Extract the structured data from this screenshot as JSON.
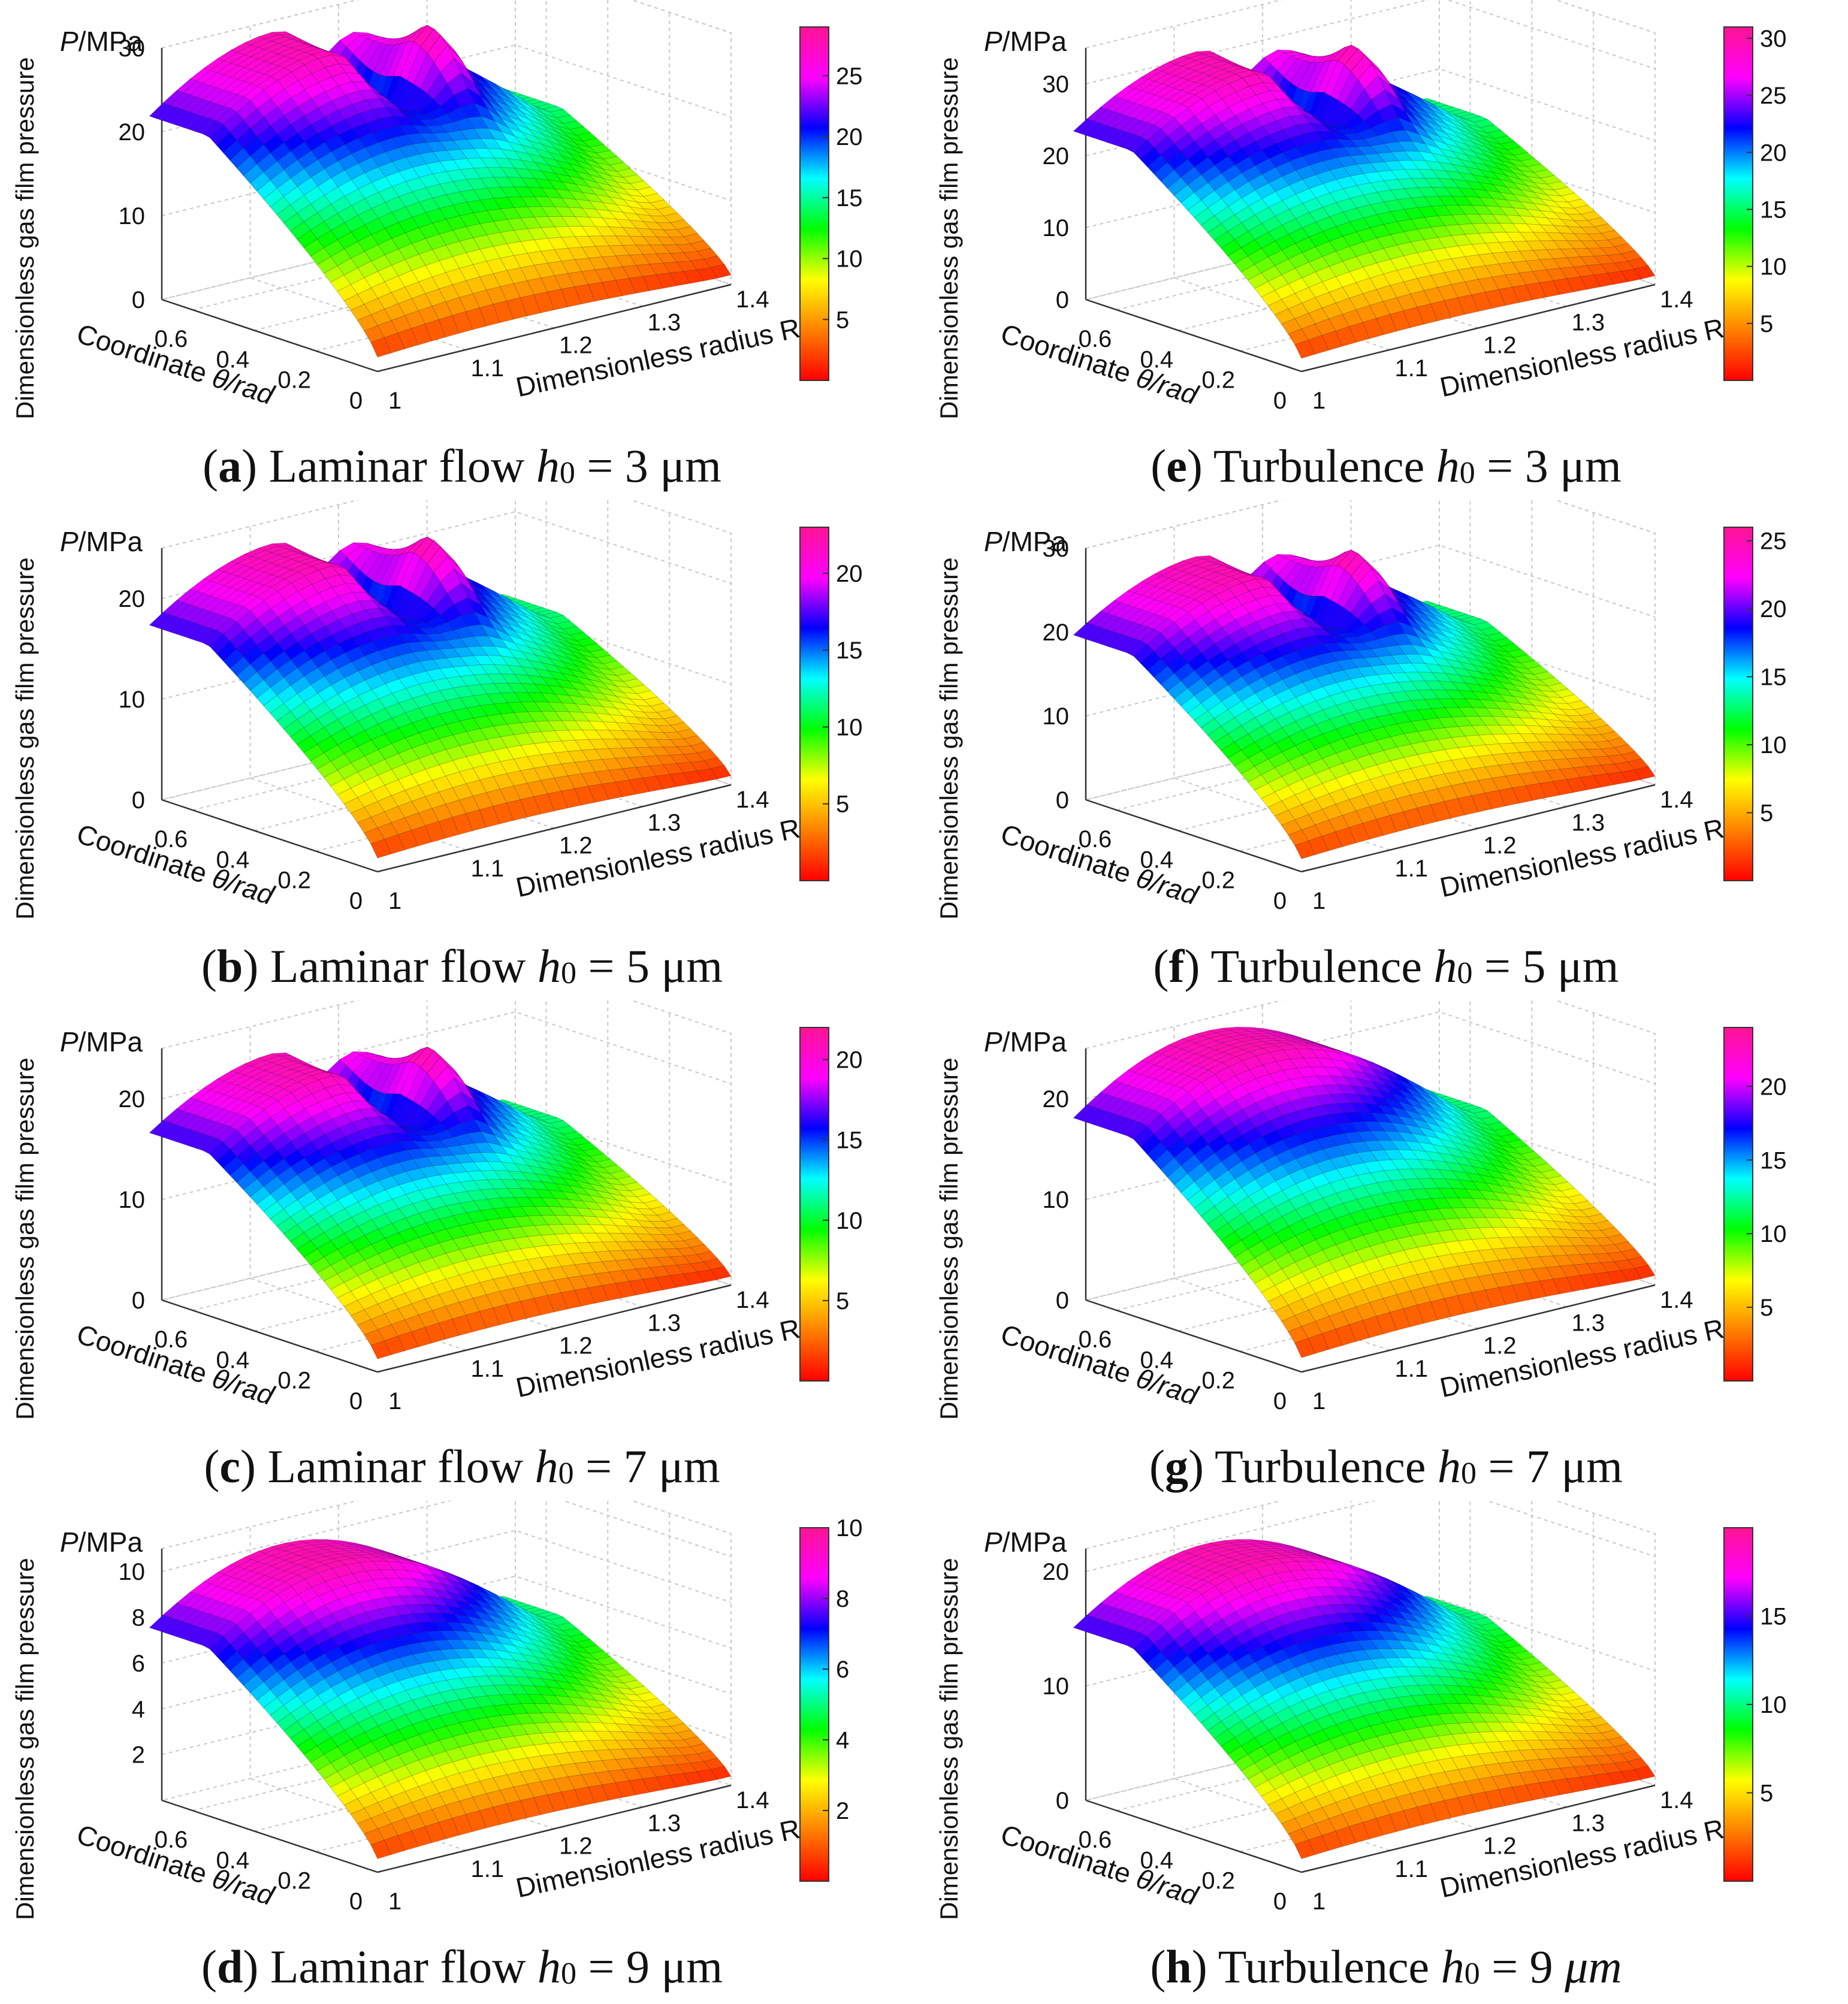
{
  "palette": [
    "#ff0000",
    "#ff8000",
    "#ffff00",
    "#00ff00",
    "#00ffff",
    "#0000ff",
    "#ff00ff",
    "#ff1493"
  ],
  "chart_data": [
    {
      "id": "a",
      "type": "surface",
      "regime": "Laminar flow",
      "h0": "3",
      "unit": "μm",
      "letter": "a",
      "zlabel": "P/MPa",
      "ylabel": "Dimensionless gas film pressure",
      "xlabel": "Dimensionless radius R",
      "thetalabel": "Coordinate θ/rad",
      "zticks": [
        "0",
        "10",
        "20",
        "30"
      ],
      "zmax": 30,
      "peak": 29,
      "rticks": [
        "1",
        "1.1",
        "1.2",
        "1.3",
        "1.4"
      ],
      "thticks": [
        "0",
        "0.2",
        "0.4",
        "0.6"
      ],
      "cbticks": [
        "5",
        "10",
        "15",
        "20",
        "25"
      ],
      "cbmax": 29,
      "groove": true
    },
    {
      "id": "e",
      "type": "surface",
      "regime": "Turbulence",
      "h0": "3",
      "unit": "μm",
      "letter": "e",
      "zlabel": "P/MPa",
      "ylabel": "Dimensionless gas film pressure",
      "xlabel": "Dimensionless radius R",
      "thetalabel": "Coordinate θ/rad",
      "zticks": [
        "0",
        "10",
        "20",
        "30"
      ],
      "zmax": 35,
      "peak": 31,
      "rticks": [
        "1",
        "1.1",
        "1.2",
        "1.3",
        "1.4"
      ],
      "thticks": [
        "0",
        "0.2",
        "0.4",
        "0.6"
      ],
      "cbticks": [
        "5",
        "10",
        "15",
        "20",
        "25",
        "30"
      ],
      "cbmax": 31,
      "groove": true
    },
    {
      "id": "b",
      "type": "surface",
      "regime": "Laminar flow",
      "h0": "5",
      "unit": "μm",
      "letter": "b",
      "zlabel": "P/MPa",
      "ylabel": "Dimensionless gas film pressure",
      "xlabel": "Dimensionless radius R",
      "thetalabel": "Coordinate θ/rad",
      "zticks": [
        "0",
        "10",
        "20"
      ],
      "zmax": 25,
      "peak": 23,
      "rticks": [
        "1",
        "1.1",
        "1.2",
        "1.3",
        "1.4"
      ],
      "thticks": [
        "0",
        "0.2",
        "0.4",
        "0.6"
      ],
      "cbticks": [
        "5",
        "10",
        "15",
        "20"
      ],
      "cbmax": 23,
      "groove": true
    },
    {
      "id": "f",
      "type": "surface",
      "regime": "Turbulence",
      "h0": "5",
      "unit": "μm",
      "letter": "f",
      "zlabel": "P/MPa",
      "ylabel": "Dimensionless gas film pressure",
      "xlabel": "Dimensionless radius R",
      "thetalabel": "Coordinate θ/rad",
      "zticks": [
        "0",
        "10",
        "20",
        "30"
      ],
      "zmax": 30,
      "peak": 26,
      "rticks": [
        "1",
        "1.1",
        "1.2",
        "1.3",
        "1.4"
      ],
      "thticks": [
        "0",
        "0.2",
        "0.4",
        "0.6"
      ],
      "cbticks": [
        "5",
        "10",
        "15",
        "20",
        "25"
      ],
      "cbmax": 26,
      "groove": true
    },
    {
      "id": "c",
      "type": "surface",
      "regime": "Laminar flow",
      "h0": "7",
      "unit": "μm",
      "letter": "c",
      "zlabel": "P/MPa",
      "ylabel": "Dimensionless gas film pressure",
      "xlabel": "Dimensionless radius R",
      "thetalabel": "Coordinate θ/rad",
      "zticks": [
        "0",
        "10",
        "20"
      ],
      "zmax": 25,
      "peak": 22,
      "rticks": [
        "1",
        "1.1",
        "1.2",
        "1.3",
        "1.4"
      ],
      "thticks": [
        "0",
        "0.2",
        "0.4",
        "0.6"
      ],
      "cbticks": [
        "5",
        "10",
        "15",
        "20"
      ],
      "cbmax": 22,
      "groove": true
    },
    {
      "id": "g",
      "type": "surface",
      "regime": "Turbulence",
      "h0": "7",
      "unit": "μm",
      "letter": "g",
      "zlabel": "P/MPa",
      "ylabel": "Dimensionless gas film pressure",
      "xlabel": "Dimensionless radius R",
      "thetalabel": "Coordinate θ/rad",
      "zticks": [
        "0",
        "10",
        "20"
      ],
      "zmax": 25,
      "peak": 24,
      "rticks": [
        "1",
        "1.1",
        "1.2",
        "1.3",
        "1.4"
      ],
      "thticks": [
        "0",
        "0.2",
        "0.4",
        "0.6"
      ],
      "cbticks": [
        "5",
        "10",
        "15",
        "20"
      ],
      "cbmax": 24,
      "groove": false
    },
    {
      "id": "d",
      "type": "surface",
      "regime": "Laminar flow",
      "h0": "9",
      "unit": "μm",
      "letter": "d",
      "zlabel": "P/MPa",
      "ylabel": "Dimensionless gas film pressure",
      "xlabel": "Dimensionless radius R",
      "thetalabel": "Coordinate θ/rad",
      "zticks": [
        "2",
        "4",
        "6",
        "8",
        "10"
      ],
      "zmax": 11,
      "zmin": 0,
      "peak": 10,
      "rticks": [
        "1",
        "1.1",
        "1.2",
        "1.3",
        "1.4"
      ],
      "thticks": [
        "0",
        "0.2",
        "0.4",
        "0.6"
      ],
      "cbticks": [
        "2",
        "4",
        "6",
        "8",
        "10"
      ],
      "cbmax": 10,
      "groove": false
    },
    {
      "id": "h",
      "type": "surface",
      "regime": "Turbulence",
      "h0": "9",
      "unit": "μm",
      "letter": "h",
      "unitItalic": true,
      "zlabel": "P/MPa",
      "ylabel": "Dimensionless gas film pressure",
      "xlabel": "Dimensionless radius R",
      "thetalabel": "Coordinate θ/rad",
      "zticks": [
        "0",
        "10",
        "20"
      ],
      "zmax": 22,
      "peak": 20,
      "rticks": [
        "1",
        "1.1",
        "1.2",
        "1.3",
        "1.4"
      ],
      "thticks": [
        "0",
        "0.2",
        "0.4",
        "0.6"
      ],
      "cbticks": [
        "5",
        "10",
        "15"
      ],
      "cbmax": 20,
      "groove": false
    }
  ]
}
